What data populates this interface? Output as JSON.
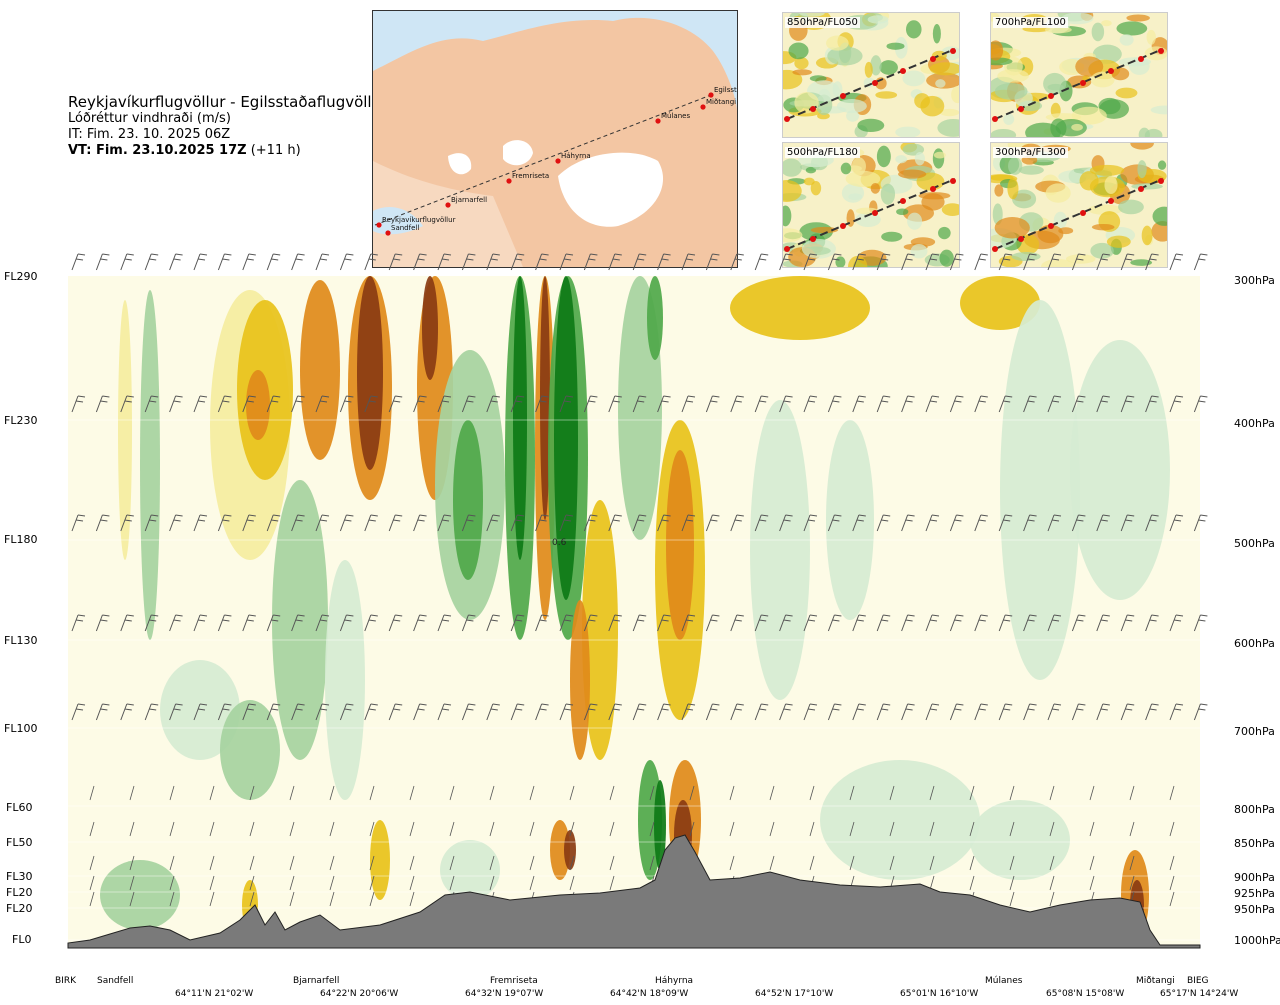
{
  "header": {
    "title": "Reykjavíkurflugvöllur - Egilsstaðaflugvöllur",
    "subtitle": "Lóðréttur vindhraði (m/s)",
    "it": "IT: Fim. 23. 10. 2025 06Z",
    "vt_bold": "VT: Fim. 23.10.2025 17Z",
    "vt_rest": " (+11 h)"
  },
  "map": {
    "waypoints": [
      "Reykjavíkurflugvöllur",
      "Sandfell",
      "Bjarnarfell",
      "Fremriseta",
      "Háhyrna",
      "Múlanes",
      "Miðtangi",
      "Egilsstaðir"
    ]
  },
  "mini_maps": [
    {
      "label": "850hPa/FL050"
    },
    {
      "label": "700hPa/FL100"
    },
    {
      "label": "500hPa/FL180"
    },
    {
      "label": "300hPa/FL300"
    }
  ],
  "chart_data": {
    "type": "heatmap",
    "title": "Reykjavíkurflugvöllur - Egilsstaðaflugvöllur",
    "quantity": "Lóðréttur vindhraði (m/s)",
    "y_left_labels": [
      {
        "label": "FL290",
        "hpa": 300
      },
      {
        "label": "FL230",
        "hpa": 400
      },
      {
        "label": "FL180",
        "hpa": 500
      },
      {
        "label": "FL130",
        "hpa": 600
      },
      {
        "label": "FL100",
        "hpa": 700
      },
      {
        "label": "FL60",
        "hpa": 800
      },
      {
        "label": "FL50",
        "hpa": 850
      },
      {
        "label": "FL30",
        "hpa": 900
      },
      {
        "label": "FL20",
        "hpa": 925
      },
      {
        "label": "FL20",
        "hpa": 950
      },
      {
        "label": "FL0",
        "hpa": 1000
      }
    ],
    "y_right_labels": [
      "300hPa",
      "400hPa",
      "500hPa",
      "600hPa",
      "700hPa",
      "800hPa",
      "850hPa",
      "900hPa",
      "925hPa",
      "950hPa",
      "1000hPa"
    ],
    "contour_label": "0.6",
    "locations": [
      "BIRK",
      "Sandfell",
      "Bjarnarfell",
      "Fremriseta",
      "Háhyrna",
      "Múlanes",
      "Miðtangi",
      "BIEG"
    ],
    "coordinates": [
      "64°11'N 21°02'W",
      "64°22'N 20°06'W",
      "64°32'N 19°07'W",
      "64°42'N 18°09'W",
      "64°52'N 17°10'W",
      "65°01'N 16°10'W",
      "65°08'N 15°08'W",
      "65°17'N 14°24'W"
    ],
    "colors": {
      "strong_down": "#8a3b12",
      "down": "#e08a1a",
      "weak_down": "#e8c21a",
      "very_weak_down": "#f5eda0",
      "neutral": "#fdfbe6",
      "very_weak_up": "#d6ecd2",
      "weak_up": "#a6d3a0",
      "up": "#4fa84a",
      "strong_up": "#0e7a16",
      "terrain": "#7a7a7a"
    }
  }
}
